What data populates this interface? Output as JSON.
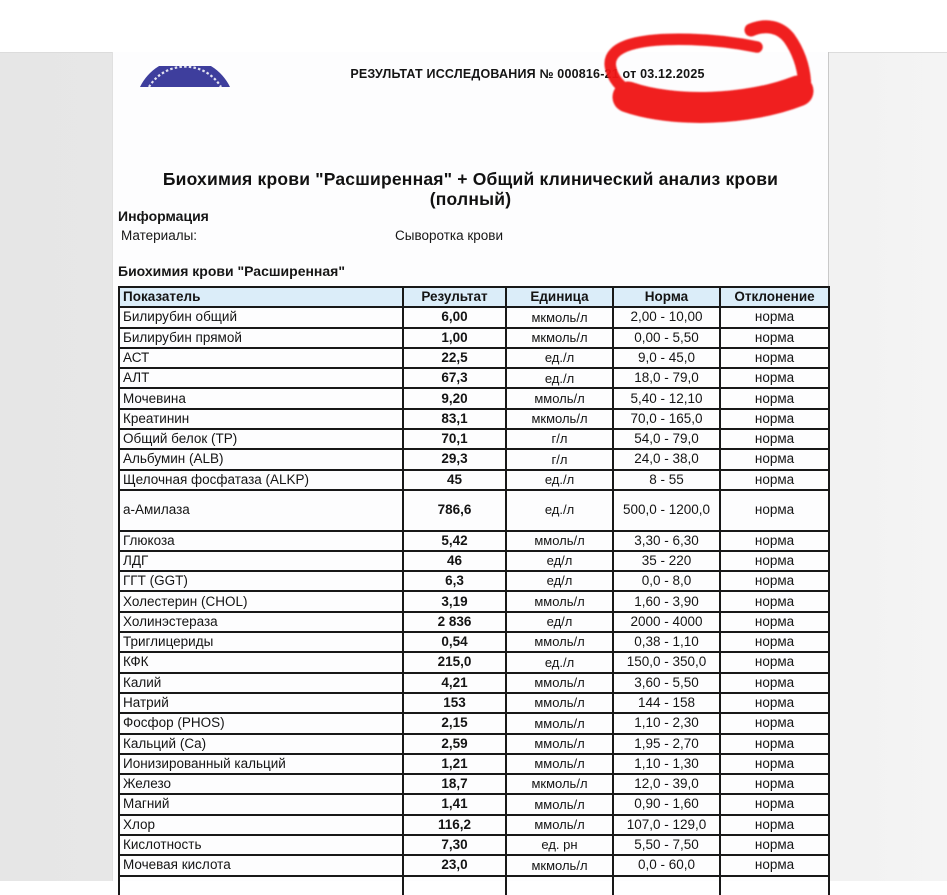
{
  "header": {
    "result_line": "РЕЗУЛЬТАТ ИССЛЕДОВАНИЯ № 000816-21 от 03.12.2025"
  },
  "document": {
    "title_line1": "Биохимия крови \"Расширенная\" + Общий клинический анализ крови",
    "title_line2": "(полный)",
    "info_heading": "Информация",
    "materials_label": "Материалы:",
    "materials_value": "Сыворотка крови",
    "section_heading": "Биохимия крови \"Расширенная\""
  },
  "table": {
    "columns": [
      "Показатель",
      "Результат",
      "Единица",
      "Норма",
      "Отклонение"
    ],
    "rows": [
      [
        "Билирубин общий",
        "6,00",
        "мкмоль/л",
        "2,00 - 10,00",
        "норма"
      ],
      [
        "Билирубин прямой",
        "1,00",
        "мкмоль/л",
        "0,00 - 5,50",
        "норма"
      ],
      [
        "АСТ",
        "22,5",
        "ед./л",
        "9,0 - 45,0",
        "норма"
      ],
      [
        "АЛТ",
        "67,3",
        "ед./л",
        "18,0 - 79,0",
        "норма"
      ],
      [
        "Мочевина",
        "9,20",
        "ммоль/л",
        "5,40 - 12,10",
        "норма"
      ],
      [
        "Креатинин",
        "83,1",
        "мкмоль/л",
        "70,0 - 165,0",
        "норма"
      ],
      [
        "Общий белок (TP)",
        "70,1",
        "г/л",
        "54,0 - 79,0",
        "норма"
      ],
      [
        "Альбумин (ALB)",
        "29,3",
        "г/л",
        "24,0 - 38,0",
        "норма"
      ],
      [
        "Щелочная фосфатаза (ALKP)",
        "45",
        "ед./л",
        "8 - 55",
        "норма"
      ],
      [
        "а-Амилаза",
        "786,6",
        "ед./л",
        "500,0 -\n1200,0",
        "норма"
      ],
      [
        "Глюкоза",
        "5,42",
        "ммоль/л",
        "3,30 - 6,30",
        "норма"
      ],
      [
        "ЛДГ",
        "46",
        "ед/л",
        "35 - 220",
        "норма"
      ],
      [
        "ГГТ (GGT)",
        "6,3",
        "ед/л",
        "0,0 - 8,0",
        "норма"
      ],
      [
        "Холестерин (CHOL)",
        "3,19",
        "ммоль/л",
        "1,60 - 3,90",
        "норма"
      ],
      [
        "Холинэстераза",
        "2 836",
        "ед/л",
        "2000 - 4000",
        "норма"
      ],
      [
        "Триглицериды",
        "0,54",
        "ммоль/л",
        "0,38 - 1,10",
        "норма"
      ],
      [
        "КФК",
        "215,0",
        "ед./л",
        "150,0 - 350,0",
        "норма"
      ],
      [
        "Калий",
        "4,21",
        "ммоль/л",
        "3,60 - 5,50",
        "норма"
      ],
      [
        "Натрий",
        "153",
        "ммоль/л",
        "144 - 158",
        "норма"
      ],
      [
        "Фосфор (PHOS)",
        "2,15",
        "ммоль/л",
        "1,10 - 2,30",
        "норма"
      ],
      [
        "Кальций (Ca)",
        "2,59",
        "ммоль/л",
        "1,95 - 2,70",
        "норма"
      ],
      [
        "Ионизированный кальций",
        "1,21",
        "ммоль/л",
        "1,10 - 1,30",
        "норма"
      ],
      [
        "Железо",
        "18,7",
        "мкмоль/л",
        "12,0 - 39,0",
        "норма"
      ],
      [
        "Магний",
        "1,41",
        "ммоль/л",
        "0,90 - 1,60",
        "норма"
      ],
      [
        "Хлор",
        "116,2",
        "ммоль/л",
        "107,0 - 129,0",
        "норма"
      ],
      [
        "Кислотность",
        "7,30",
        "ед. рн",
        "5,50 - 7,50",
        "норма"
      ],
      [
        "Мочевая кислота",
        "23,0",
        "мкмоль/л",
        "0,0 - 60,0",
        "норма"
      ]
    ]
  },
  "colors": {
    "annotation_red": "#f01212",
    "table_header_bg": "#dbedf9",
    "logo_blue": "#3e3e9d",
    "border_black": "#181818"
  },
  "icons": {
    "logo": "lab-round-stamp-logo",
    "annotation": "red-circle-annotation"
  }
}
